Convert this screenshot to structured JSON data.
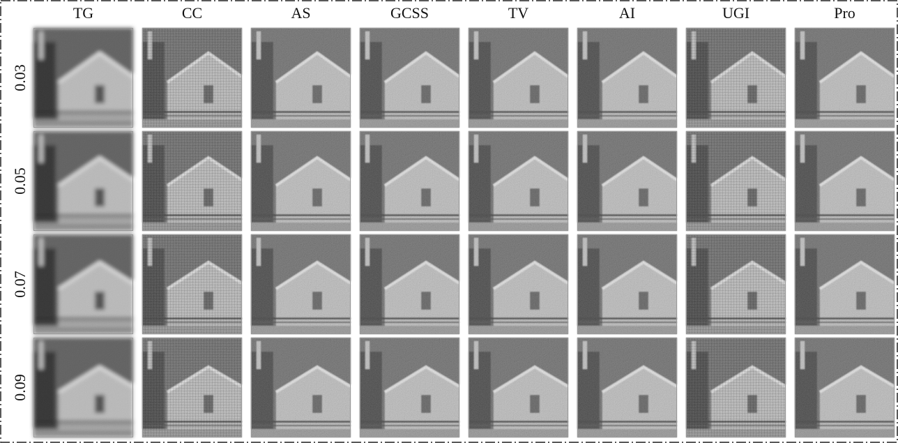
{
  "columns": [
    "TG",
    "CC",
    "AS",
    "GCSS",
    "TV",
    "AI",
    "UGI",
    "Pro"
  ],
  "rows": [
    "0.03",
    "0.05",
    "0.07",
    "0.09"
  ]
}
